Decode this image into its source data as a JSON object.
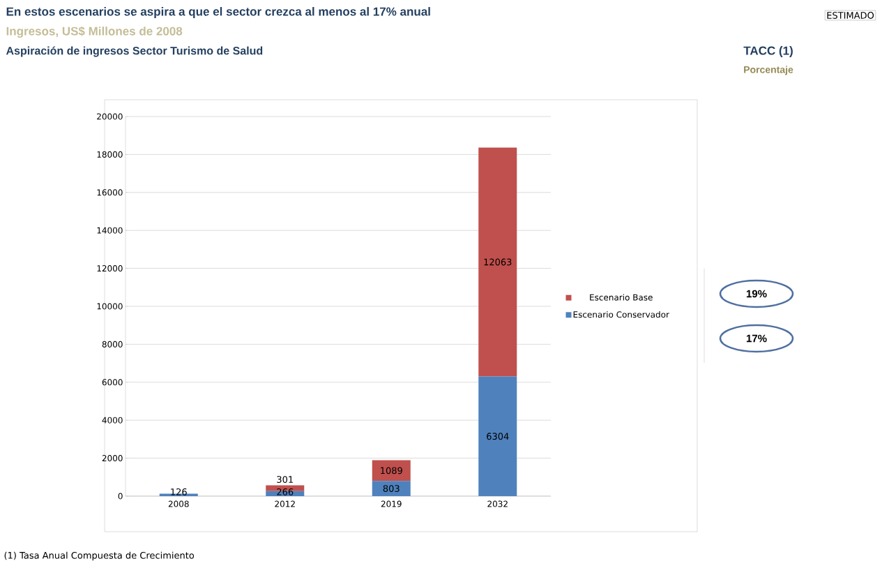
{
  "chart_data": {
    "type": "bar",
    "stacked": true,
    "title": "En estos escenarios se aspira a que el sector crezca al menos al 17% anual",
    "subtitle": "Ingresos, US$ Millones de 2008",
    "categories": [
      "2008",
      "2012",
      "2019",
      "2032"
    ],
    "series": [
      {
        "name": "Escenario Conservador",
        "color": "#4f81bd",
        "values": [
          126,
          266,
          803,
          6304
        ]
      },
      {
        "name": "Escenario Base",
        "color": "#c0504d",
        "values": [
          null,
          301,
          1089,
          12063
        ]
      }
    ],
    "ylim": [
      0,
      20000
    ],
    "yticks": [
      0,
      2000,
      4000,
      6000,
      8000,
      10000,
      12000,
      14000,
      16000,
      18000,
      20000
    ],
    "grid": "y",
    "legend": "right",
    "data_labels": true,
    "annotations": [
      "ESTIMADO",
      "Aspiración de ingresos Sector Turismo de Salud",
      "TACC (1)",
      "Porcentaje",
      "19%",
      "17%",
      "(1) Tasa Anual Compuesta de Crecimiento"
    ]
  }
}
